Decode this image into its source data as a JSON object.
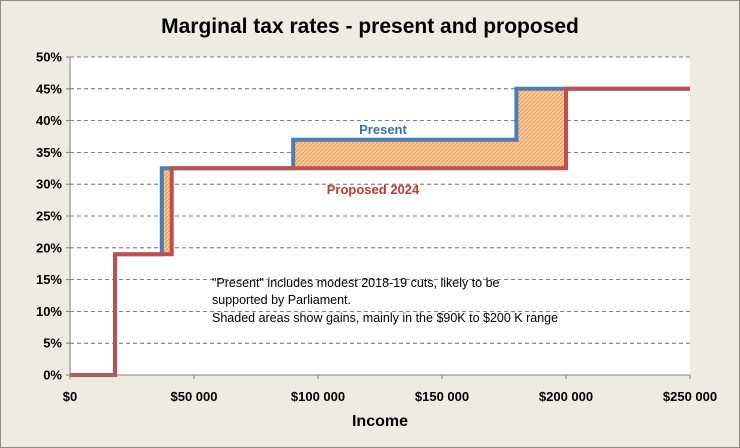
{
  "chart_data": {
    "type": "line",
    "step": true,
    "title": "Marginal tax rates - present and proposed",
    "xlabel": "Income",
    "ylabel": "",
    "xlim": [
      0,
      250000
    ],
    "ylim": [
      0,
      0.5
    ],
    "x_ticks": [
      0,
      50000,
      100000,
      150000,
      200000,
      250000
    ],
    "x_tick_labels": [
      "$0",
      "$50 000",
      "$100 000",
      "$150 000",
      "$200 000",
      "$250 000"
    ],
    "y_ticks": [
      0,
      0.05,
      0.1,
      0.15,
      0.2,
      0.25,
      0.3,
      0.35,
      0.4,
      0.45,
      0.5
    ],
    "y_tick_labels": [
      "0%",
      "5%",
      "10%",
      "15%",
      "20%",
      "25%",
      "30%",
      "35%",
      "40%",
      "45%",
      "50%"
    ],
    "grid": true,
    "series": [
      {
        "name": "Present",
        "color": "#4a7ebb",
        "points": [
          [
            0,
            0
          ],
          [
            18200,
            0
          ],
          [
            18200,
            0.19
          ],
          [
            37000,
            0.19
          ],
          [
            37000,
            0.325
          ],
          [
            90000,
            0.325
          ],
          [
            90000,
            0.37
          ],
          [
            180000,
            0.37
          ],
          [
            180000,
            0.45
          ],
          [
            250000,
            0.45
          ]
        ]
      },
      {
        "name": "Proposed 2024",
        "color": "#c0504d",
        "points": [
          [
            0,
            0
          ],
          [
            18200,
            0
          ],
          [
            18200,
            0.19
          ],
          [
            41000,
            0.19
          ],
          [
            41000,
            0.325
          ],
          [
            200000,
            0.325
          ],
          [
            200000,
            0.45
          ],
          [
            250000,
            0.45
          ]
        ]
      }
    ],
    "shaded_areas": {
      "fill_color": "#f9c89b",
      "description_bound_to_note": true
    },
    "annotation": [
      "\"Present\" includes modest 2018-19 cuts, likely to be",
      "supported by Parliament.",
      "Shaded areas show gains, mainly in the $90K to $200  K range"
    ],
    "colors": {
      "frame_background": "#eeece1",
      "plot_background": "#ffffff",
      "present_line": "#4a7ebb",
      "proposed_line": "#c0504d",
      "shade": "#f9c89b"
    }
  }
}
